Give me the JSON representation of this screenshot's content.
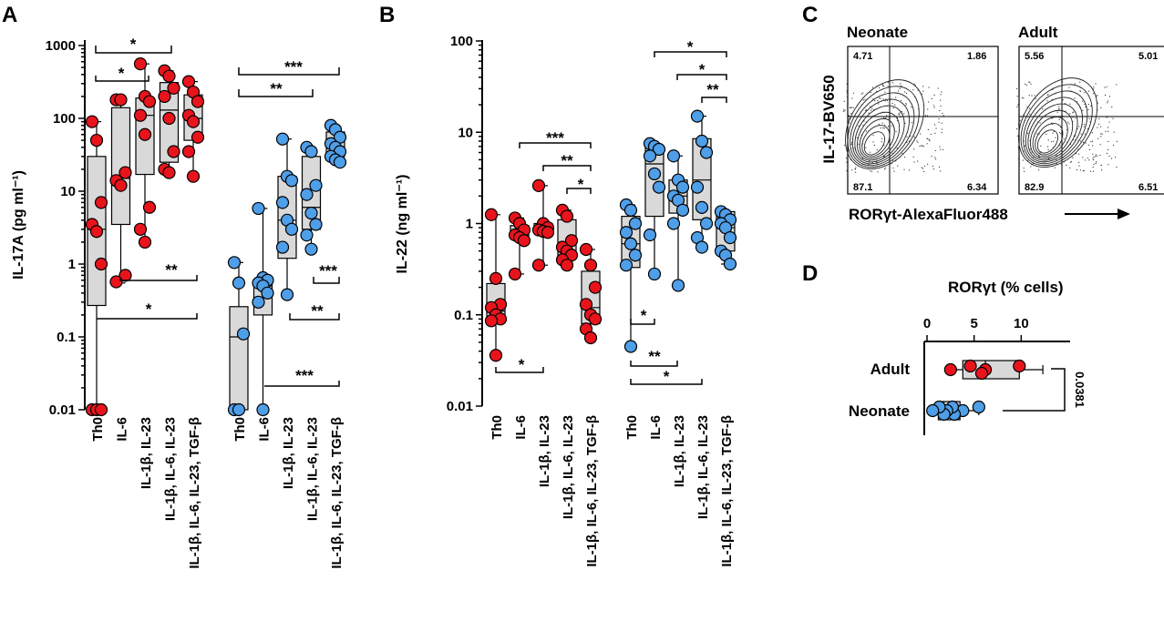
{
  "panels": {
    "A": "A",
    "B": "B",
    "C": "C",
    "D": "D"
  },
  "colors": {
    "neonate": "#e8141c",
    "adult": "#4f9ee8",
    "box": "#d9d9d9"
  },
  "chart_data": [
    {
      "id": "A",
      "type": "box",
      "ylabel": "IL-17A (pg ml⁻¹)",
      "yscale": "log",
      "ylim": [
        0.01,
        1000
      ],
      "yticks": [
        "0.01",
        "0.1",
        "1",
        "10",
        "100",
        "1000"
      ],
      "categories": [
        "Th0",
        "IL-6",
        "IL-1β, IL-23",
        "IL-1β, IL-6, IL-23",
        "IL-1β, IL-6, IL-23, TGF-β"
      ],
      "series": [
        {
          "name": "neonate",
          "color": "#e8141c",
          "groups": [
            {
              "points": [
                90,
                50,
                7,
                3.5,
                2.8,
                1.0,
                0.01,
                0.01,
                0.01
              ],
              "box": [
                0.27,
                3,
                30
              ],
              "whisker": [
                0.01,
                90
              ]
            },
            {
              "points": [
                180,
                180,
                18,
                14,
                12,
                0.7,
                0.57
              ],
              "box": [
                3.5,
                15,
                140
              ],
              "whisker": [
                0.55,
                180
              ]
            },
            {
              "points": [
                560,
                200,
                170,
                110,
                60,
                6,
                3,
                2
              ],
              "box": [
                17,
                110,
                190
              ],
              "whisker": [
                2,
                560
              ]
            },
            {
              "points": [
                450,
                380,
                260,
                200,
                100,
                35,
                20,
                18
              ],
              "box": [
                25,
                130,
                310
              ],
              "whisker": [
                18,
                450
              ]
            },
            {
              "points": [
                320,
                230,
                170,
                110,
                90,
                55,
                35,
                16
              ],
              "box": [
                50,
                100,
                210
              ],
              "whisker": [
                16,
                320
              ]
            }
          ]
        },
        {
          "name": "adult",
          "color": "#4f9ee8",
          "groups": [
            {
              "points": [
                1.05,
                0.55,
                0.11,
                0.01,
                0.01
              ],
              "box": [
                0.01,
                0.1,
                0.26
              ],
              "whisker": [
                0.01,
                1.05
              ]
            },
            {
              "points": [
                5.8,
                0.65,
                0.6,
                0.55,
                0.5,
                0.4,
                0.3,
                0.01
              ],
              "box": [
                0.2,
                0.5,
                0.6
              ],
              "whisker": [
                0.01,
                5.8
              ]
            },
            {
              "points": [
                52,
                16,
                14,
                7,
                4,
                3,
                1.7,
                0.38
              ],
              "box": [
                1.2,
                4,
                16
              ],
              "whisker": [
                0.37,
                52
              ]
            },
            {
              "points": [
                40,
                35,
                12,
                9,
                5,
                3.5,
                2.5,
                1.6
              ],
              "box": [
                3,
                6,
                30
              ],
              "whisker": [
                1.6,
                40
              ]
            },
            {
              "points": [
                80,
                70,
                55,
                45,
                40,
                35,
                30,
                27,
                25
              ],
              "box": [
                30,
                40,
                65
              ],
              "whisker": [
                24,
                80
              ]
            }
          ]
        }
      ],
      "significance": [
        "*",
        "*",
        "**",
        "*",
        "***",
        "**",
        "***",
        "**",
        "***"
      ]
    },
    {
      "id": "B",
      "type": "box",
      "ylabel": "IL-22 (ng ml⁻¹)",
      "yscale": "log",
      "ylim": [
        0.01,
        100
      ],
      "yticks": [
        "0.01",
        "0.1",
        "1",
        "10",
        "100"
      ],
      "categories": [
        "Th0",
        "IL-6",
        "IL-1β, IL-23",
        "IL-1β, IL-6, IL-23",
        "IL-1β, IL-6, IL-23, TGF-β"
      ],
      "series": [
        {
          "name": "neonate",
          "color": "#e8141c",
          "groups": [
            {
              "points": [
                1.25,
                0.25,
                0.13,
                0.12,
                0.1,
                0.09,
                0.086,
                0.036
              ],
              "box": [
                0.09,
                0.11,
                0.22
              ],
              "whisker": [
                0.035,
                1.25
              ]
            },
            {
              "points": [
                1.15,
                1.0,
                0.85,
                0.75,
                0.7,
                0.65,
                0.28
              ],
              "box": [
                0.68,
                0.8,
                0.95
              ],
              "whisker": [
                0.28,
                1.15
              ]
            },
            {
              "points": [
                2.6,
                1.0,
                0.9,
                0.85,
                0.82,
                0.8,
                0.35
              ],
              "box": [
                0.78,
                0.85,
                1.0
              ],
              "whisker": [
                0.35,
                2.6
              ]
            },
            {
              "points": [
                1.4,
                1.2,
                0.65,
                0.55,
                0.5,
                0.45,
                0.4,
                0.35
              ],
              "box": [
                0.45,
                0.6,
                1.1
              ],
              "whisker": [
                0.35,
                1.4
              ]
            },
            {
              "points": [
                0.52,
                0.35,
                0.2,
                0.13,
                0.1,
                0.09,
                0.07,
                0.056
              ],
              "box": [
                0.08,
                0.12,
                0.3
              ],
              "whisker": [
                0.055,
                0.52
              ]
            }
          ]
        },
        {
          "name": "adult",
          "color": "#4f9ee8",
          "groups": [
            {
              "points": [
                1.6,
                1.4,
                1.0,
                0.8,
                0.6,
                0.45,
                0.35,
                0.045
              ],
              "box": [
                0.33,
                0.6,
                1.2
              ],
              "whisker": [
                0.044,
                1.6
              ]
            },
            {
              "points": [
                7.5,
                7,
                6.5,
                5.5,
                3.5,
                2.5,
                0.75,
                0.28
              ],
              "box": [
                1.2,
                4.5,
                7
              ],
              "whisker": [
                0.28,
                7.5
              ]
            },
            {
              "points": [
                5.5,
                3,
                2.5,
                2,
                1.8,
                1.4,
                1.0,
                0.21
              ],
              "box": [
                1.3,
                2,
                3
              ],
              "whisker": [
                0.21,
                5.5
              ]
            },
            {
              "points": [
                15,
                8,
                6,
                2.5,
                1.5,
                1.0,
                0.7,
                0.55
              ],
              "box": [
                1.1,
                3,
                8.5
              ],
              "whisker": [
                0.55,
                15
              ]
            },
            {
              "points": [
                1.35,
                1.25,
                1.1,
                1.0,
                0.9,
                0.7,
                0.5,
                0.45,
                0.36
              ],
              "box": [
                0.5,
                0.9,
                1.35
              ],
              "whisker": [
                0.36,
                1.35
              ]
            }
          ]
        }
      ],
      "significance": [
        "***",
        "**",
        "*",
        "*",
        "*",
        "*",
        "**",
        "*",
        "**",
        "*"
      ]
    },
    {
      "id": "D",
      "type": "box",
      "title": "RORγt (% cells)",
      "xlim": [
        0,
        15
      ],
      "xticks": [
        "0",
        "5",
        "10"
      ],
      "categories": [
        "Adult",
        "Neonate"
      ],
      "series": [
        {
          "name": "Adult",
          "color": "#e8141c",
          "points": [
            9.8,
            6.2,
            5.8,
            4.6,
            2.5
          ],
          "box": [
            3.8,
            6.2,
            9.8
          ],
          "whisker": [
            2.5,
            12.3
          ]
        },
        {
          "name": "Neonate",
          "color": "#4f9ee8",
          "points": [
            5.5,
            3.8,
            2.9,
            2.7,
            2.1,
            1.8,
            1.3,
            0.6
          ],
          "box": [
            1.2,
            1.8,
            3.5
          ],
          "whisker": [
            0.6,
            5.5
          ]
        }
      ],
      "pvalue": "0.0381"
    }
  ],
  "flow": {
    "ylabel": "IL-17-BV650",
    "xlabel": "RORγt-AlexaFluor488",
    "plots": [
      {
        "title": "Neonate",
        "q_ul": "4.71",
        "q_ur": "1.86",
        "q_ll": "87.1",
        "q_lr": "6.34"
      },
      {
        "title": "Adult",
        "q_ul": "5.56",
        "q_ur": "5.01",
        "q_ll": "82.9",
        "q_lr": "6.51"
      }
    ]
  }
}
